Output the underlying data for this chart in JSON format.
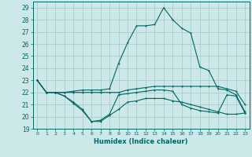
{
  "xlabel": "Humidex (Indice chaleur)",
  "ylabel": "",
  "xlim": [
    -0.5,
    23.5
  ],
  "ylim": [
    19,
    29.5
  ],
  "yticks": [
    19,
    20,
    21,
    22,
    23,
    24,
    25,
    26,
    27,
    28,
    29
  ],
  "xticks": [
    0,
    1,
    2,
    3,
    4,
    5,
    6,
    7,
    8,
    9,
    10,
    11,
    12,
    13,
    14,
    15,
    16,
    17,
    18,
    19,
    20,
    21,
    22,
    23
  ],
  "bg_color": "#cce8e8",
  "grid_color": "#aacccc",
  "line_color": "#006666",
  "lines": [
    [
      23,
      22,
      22,
      21.7,
      21.2,
      20.6,
      19.6,
      19.6,
      20.1,
      20.6,
      21.2,
      21.3,
      21.5,
      21.5,
      21.5,
      21.3,
      21.2,
      21.0,
      20.8,
      20.6,
      20.4,
      20.2,
      20.2,
      20.3
    ],
    [
      23,
      22,
      22,
      21.7,
      21.1,
      20.5,
      19.6,
      19.7,
      20.2,
      21.8,
      21.9,
      22.0,
      22.1,
      22.2,
      22.2,
      22.1,
      21.0,
      20.7,
      20.5,
      20.4,
      20.3,
      21.8,
      21.7,
      20.3
    ],
    [
      23,
      22,
      22,
      22.0,
      22.0,
      22.0,
      22.0,
      22.0,
      22.0,
      22.0,
      22.2,
      22.3,
      22.4,
      22.5,
      22.5,
      22.5,
      22.5,
      22.5,
      22.5,
      22.5,
      22.5,
      22.3,
      22.1,
      21.0
    ],
    [
      23,
      22,
      22,
      22.0,
      22.1,
      22.2,
      22.2,
      22.2,
      22.3,
      24.4,
      26.1,
      27.5,
      27.5,
      27.6,
      29.0,
      28.0,
      27.3,
      26.9,
      24.1,
      23.8,
      22.3,
      22.2,
      21.8,
      20.4
    ]
  ]
}
